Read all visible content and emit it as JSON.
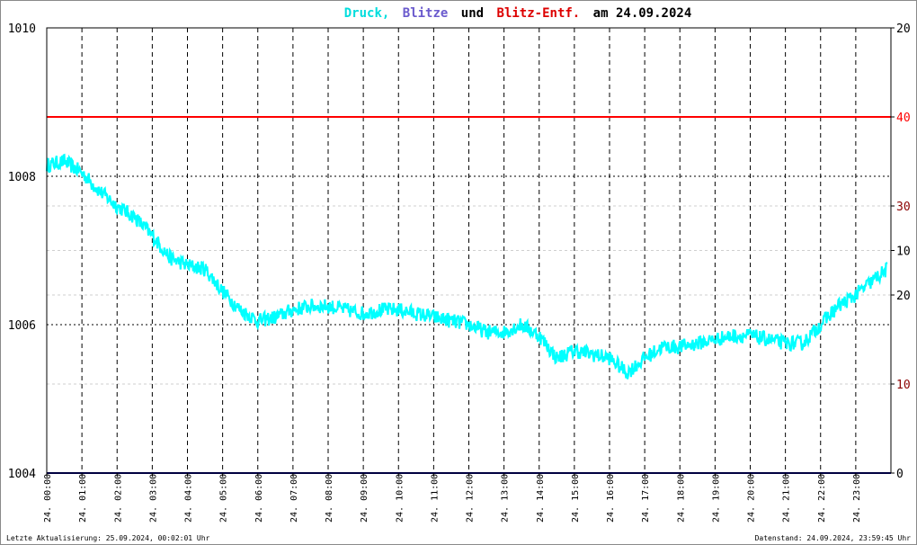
{
  "title": {
    "part1": "Druck,",
    "part2": "Blitze",
    "part3": "und",
    "part4": "Blitz-Entf.",
    "part5": "am 24.09.2024"
  },
  "colors": {
    "druck": "#00ffff",
    "blitze": "#6a5acd",
    "blitz_entf": "#ff0000",
    "blitze_line": "#000080",
    "text": "#000000"
  },
  "footer": {
    "left": "Letzte Aktualisierung: 25.09.2024, 00:02:01 Uhr",
    "right": "Datenstand: 24.09.2024, 23:59:45 Uhr"
  },
  "chart_data": {
    "type": "line",
    "title": "Druck, Blitze und Blitz-Entf. am 24.09.2024",
    "x_tick_labels": [
      "24. 00:00",
      "24. 01:00",
      "24. 02:00",
      "24. 03:00",
      "24. 04:00",
      "24. 05:00",
      "24. 06:00",
      "24. 07:00",
      "24. 08:00",
      "24. 09:00",
      "24. 10:00",
      "24. 11:00",
      "24. 12:00",
      "24. 13:00",
      "24. 14:00",
      "24. 15:00",
      "24. 16:00",
      "24. 17:00",
      "24. 18:00",
      "24. 19:00",
      "24. 20:00",
      "24. 21:00",
      "24. 22:00",
      "24. 23:00"
    ],
    "xlim_hours": [
      0,
      24
    ],
    "y_left": {
      "ylim": [
        1004,
        1010
      ],
      "ticks": [
        "1004",
        "1006",
        "1008",
        "1010"
      ]
    },
    "y_right": {
      "ticks": [
        {
          "label": "0",
          "color": "#000000",
          "level": 1004
        },
        {
          "label": "10",
          "color": "#8b0000",
          "level": 1005.2
        },
        {
          "label": "20",
          "color": "#000000",
          "level": 1006.4
        },
        {
          "label": "10",
          "color": "#000000",
          "level": 1007
        },
        {
          "label": "30",
          "color": "#8b0000",
          "level": 1007.6
        },
        {
          "label": "40",
          "color": "#ff0000",
          "level": 1008.8
        },
        {
          "label": "20",
          "color": "#000000",
          "level": 1010
        }
      ]
    },
    "grid": true,
    "series": [
      {
        "name": "Druck",
        "color": "#00ffff",
        "x_hours": [
          0,
          0.5,
          1,
          1.5,
          2,
          2.5,
          3,
          3.5,
          4,
          4.5,
          5,
          5.5,
          6,
          6.5,
          7,
          7.5,
          8,
          8.5,
          9,
          9.5,
          10,
          10.5,
          11,
          11.5,
          12,
          12.5,
          13,
          13.5,
          14,
          14.5,
          15,
          15.5,
          16,
          16.5,
          17,
          17.5,
          18,
          18.5,
          19,
          19.5,
          20,
          20.5,
          21,
          21.5,
          22,
          22.5,
          23,
          23.5,
          23.9
        ],
        "values": [
          1008.15,
          1008.2,
          1008.05,
          1007.8,
          1007.6,
          1007.45,
          1007.2,
          1006.9,
          1006.8,
          1006.75,
          1006.45,
          1006.2,
          1006.05,
          1006.1,
          1006.2,
          1006.25,
          1006.25,
          1006.2,
          1006.15,
          1006.2,
          1006.2,
          1006.15,
          1006.1,
          1006.05,
          1006.0,
          1005.9,
          1005.9,
          1006.0,
          1005.85,
          1005.55,
          1005.65,
          1005.6,
          1005.55,
          1005.35,
          1005.55,
          1005.7,
          1005.7,
          1005.75,
          1005.8,
          1005.85,
          1005.85,
          1005.8,
          1005.75,
          1005.75,
          1006.0,
          1006.25,
          1006.4,
          1006.6,
          1006.75
        ],
        "noise_amplitude": 0.1
      },
      {
        "name": "Blitz-Entf.",
        "color": "#ff0000",
        "constant_level": 1008.8
      },
      {
        "name": "Blitze",
        "color": "#000080",
        "constant_level": 1004.0
      }
    ]
  }
}
